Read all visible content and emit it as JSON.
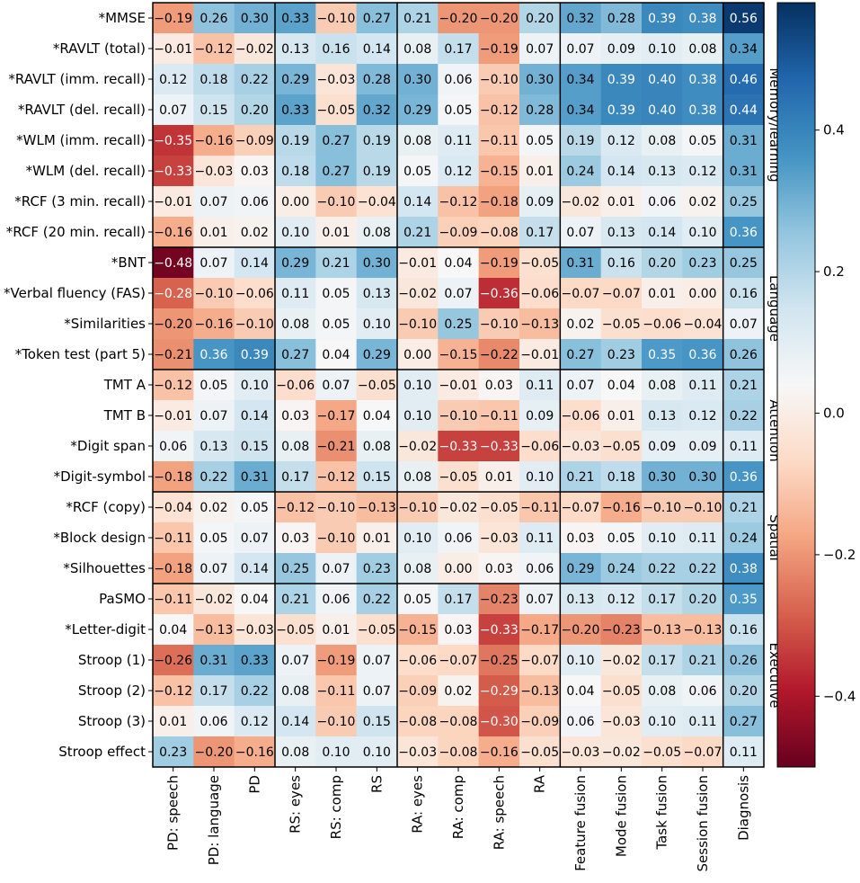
{
  "chart_data": {
    "type": "heatmap",
    "rows": [
      "*MMSE",
      "*RAVLT (total)",
      "*RAVLT (imm. recall)",
      "*RAVLT (del. recall)",
      "*WLM (imm. recall)",
      "*WLM (del. recall)",
      "*RCF (3 min. recall)",
      "*RCF (20 min. recall)",
      "*BNT",
      "*Verbal fluency (FAS)",
      "*Similarities",
      "*Token test (part 5)",
      "TMT A",
      "TMT B",
      "*Digit span",
      "*Digit-symbol",
      "*RCF (copy)",
      "*Block design",
      "*Silhouettes",
      "PaSMO",
      "*Letter-digit",
      "Stroop (1)",
      "Stroop (2)",
      "Stroop (3)",
      "Stroop effect"
    ],
    "columns": [
      "PD: speech",
      "PD: language",
      "PD",
      "RS: eyes",
      "RS: comp",
      "RS",
      "RA: eyes",
      "RA: comp",
      "RA: speech",
      "RA",
      "Feature fusion",
      "Mode fusion",
      "Task fusion",
      "Session fusion",
      "Diagnosis"
    ],
    "values": [
      [
        -0.19,
        0.26,
        0.3,
        0.33,
        -0.1,
        0.27,
        0.21,
        -0.2,
        -0.2,
        0.2,
        0.32,
        0.28,
        0.39,
        0.38,
        0.56
      ],
      [
        -0.01,
        -0.12,
        -0.02,
        0.13,
        0.16,
        0.14,
        0.08,
        0.17,
        -0.19,
        0.07,
        0.07,
        0.09,
        0.1,
        0.08,
        0.34
      ],
      [
        0.12,
        0.18,
        0.22,
        0.29,
        -0.03,
        0.28,
        0.3,
        0.06,
        -0.1,
        0.3,
        0.34,
        0.39,
        0.4,
        0.38,
        0.46
      ],
      [
        0.07,
        0.15,
        0.2,
        0.33,
        -0.05,
        0.32,
        0.29,
        0.05,
        -0.12,
        0.28,
        0.34,
        0.39,
        0.4,
        0.38,
        0.44
      ],
      [
        -0.35,
        -0.16,
        -0.09,
        0.19,
        0.27,
        0.19,
        0.08,
        0.11,
        -0.11,
        0.05,
        0.19,
        0.12,
        0.08,
        0.05,
        0.31
      ],
      [
        -0.33,
        -0.03,
        0.03,
        0.18,
        0.27,
        0.19,
        0.05,
        0.12,
        -0.15,
        0.01,
        0.24,
        0.14,
        0.13,
        0.12,
        0.31
      ],
      [
        -0.01,
        0.07,
        0.06,
        0.0,
        -0.1,
        -0.04,
        0.14,
        -0.12,
        -0.18,
        0.09,
        -0.02,
        0.01,
        0.06,
        0.02,
        0.25
      ],
      [
        -0.16,
        0.01,
        0.02,
        0.1,
        0.01,
        0.08,
        0.21,
        -0.09,
        -0.08,
        0.17,
        0.07,
        0.13,
        0.14,
        0.1,
        0.36
      ],
      [
        -0.48,
        0.07,
        0.14,
        0.29,
        0.21,
        0.3,
        -0.01,
        0.04,
        -0.19,
        -0.05,
        0.31,
        0.16,
        0.2,
        0.23,
        0.25
      ],
      [
        -0.28,
        -0.1,
        -0.06,
        0.11,
        0.05,
        0.13,
        -0.02,
        0.07,
        -0.36,
        -0.06,
        -0.07,
        -0.07,
        0.01,
        -0.0,
        0.16
      ],
      [
        -0.2,
        -0.16,
        -0.1,
        0.08,
        0.05,
        0.1,
        -0.1,
        0.25,
        -0.1,
        -0.13,
        0.02,
        -0.05,
        -0.06,
        -0.04,
        0.07
      ],
      [
        -0.21,
        0.36,
        0.39,
        0.27,
        0.04,
        0.29,
        0.0,
        -0.15,
        -0.22,
        -0.01,
        0.27,
        0.23,
        0.35,
        0.36,
        0.26
      ],
      [
        -0.12,
        0.05,
        0.1,
        -0.06,
        0.07,
        -0.05,
        0.1,
        -0.01,
        0.03,
        0.11,
        0.07,
        0.04,
        0.08,
        0.11,
        0.21
      ],
      [
        -0.01,
        0.07,
        0.14,
        0.03,
        -0.17,
        0.04,
        0.1,
        -0.1,
        -0.11,
        0.09,
        -0.06,
        0.01,
        0.13,
        0.12,
        0.22
      ],
      [
        0.06,
        0.13,
        0.15,
        0.08,
        -0.21,
        0.08,
        -0.02,
        -0.33,
        -0.33,
        -0.06,
        -0.03,
        -0.05,
        0.09,
        0.09,
        0.11
      ],
      [
        -0.18,
        0.22,
        0.31,
        0.17,
        -0.12,
        0.15,
        0.08,
        -0.05,
        0.01,
        0.1,
        0.21,
        0.18,
        0.3,
        0.3,
        0.36
      ],
      [
        -0.04,
        0.02,
        0.05,
        -0.12,
        -0.1,
        -0.13,
        -0.1,
        -0.02,
        -0.05,
        -0.11,
        -0.07,
        -0.16,
        -0.1,
        -0.1,
        0.21
      ],
      [
        -0.11,
        0.05,
        0.07,
        0.03,
        -0.1,
        0.01,
        0.1,
        0.06,
        -0.03,
        0.11,
        0.03,
        0.05,
        0.1,
        0.11,
        0.24
      ],
      [
        -0.18,
        0.07,
        0.14,
        0.25,
        0.07,
        0.23,
        0.08,
        0.0,
        0.03,
        0.06,
        0.29,
        0.24,
        0.22,
        0.22,
        0.38
      ],
      [
        -0.11,
        -0.02,
        0.04,
        0.21,
        0.06,
        0.22,
        0.05,
        0.17,
        -0.23,
        0.07,
        0.13,
        0.12,
        0.17,
        0.2,
        0.35
      ],
      [
        0.04,
        -0.13,
        -0.03,
        -0.05,
        0.01,
        -0.05,
        -0.15,
        0.03,
        -0.33,
        -0.17,
        -0.2,
        -0.23,
        -0.13,
        -0.13,
        0.16
      ],
      [
        -0.26,
        0.31,
        0.33,
        0.07,
        -0.19,
        0.07,
        -0.06,
        -0.07,
        -0.25,
        -0.07,
        0.1,
        -0.02,
        0.17,
        0.21,
        0.26
      ],
      [
        -0.12,
        0.17,
        0.22,
        0.08,
        -0.11,
        0.07,
        -0.09,
        0.02,
        -0.29,
        -0.13,
        0.04,
        -0.05,
        0.08,
        0.06,
        0.2
      ],
      [
        0.01,
        0.06,
        0.12,
        0.14,
        -0.1,
        0.15,
        -0.08,
        -0.08,
        -0.3,
        -0.09,
        0.06,
        -0.03,
        0.1,
        0.11,
        0.27
      ],
      [
        0.23,
        -0.2,
        -0.16,
        0.08,
        0.1,
        0.1,
        -0.03,
        -0.08,
        -0.16,
        -0.05,
        -0.03,
        -0.02,
        -0.05,
        -0.07,
        0.11
      ]
    ],
    "row_groups": [
      {
        "name": "Memory/learning",
        "start": 0,
        "end": 7
      },
      {
        "name": "Language",
        "start": 8,
        "end": 11
      },
      {
        "name": "Attention",
        "start": 12,
        "end": 15
      },
      {
        "name": "Spatial",
        "start": 16,
        "end": 18
      },
      {
        "name": "Executive",
        "start": 19,
        "end": 24
      }
    ],
    "column_group_boundaries_after": [
      2,
      5,
      9,
      13
    ],
    "colormap": "RdBu",
    "vmin": -0.5,
    "vmax": 0.58,
    "colorbar_ticks": [
      -0.4,
      -0.2,
      0.0,
      0.2,
      0.4
    ],
    "colorbar_tick_labels": [
      "−0.4",
      "−0.2",
      "0.0",
      "0.2",
      "0.4"
    ]
  }
}
